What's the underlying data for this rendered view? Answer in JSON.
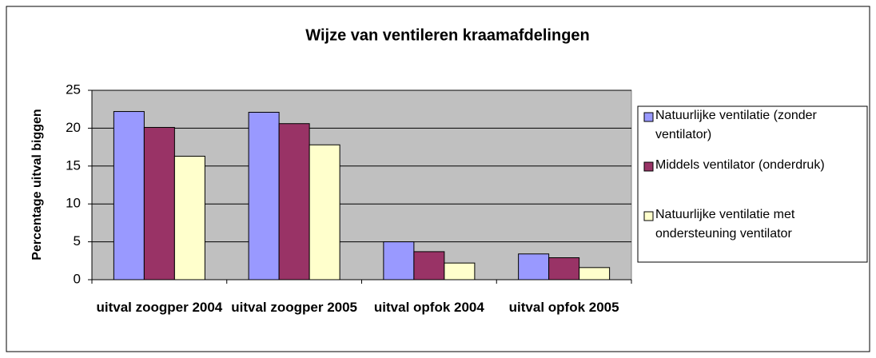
{
  "chart_data": {
    "type": "bar",
    "title": "Wijze van ventileren kraamafdelingen",
    "y_label": "Percentage uitval biggen",
    "categories": [
      "uitval zoogper 2004",
      "uitval zoogper 2005",
      "uitval opfok 2004",
      "uitval opfok 2005"
    ],
    "series": [
      {
        "name": "Natuurlijke ventilatie (zonder ventilator)",
        "color": "#9999FF",
        "values": [
          22.2,
          22.1,
          5.0,
          3.4
        ]
      },
      {
        "name": "Middels ventilator (onderdruk)",
        "color": "#993366",
        "values": [
          20.1,
          20.6,
          3.7,
          2.9
        ]
      },
      {
        "name": "Natuurlijke ventilatie met ondersteuning ventilator",
        "color": "#FFFFCC",
        "values": [
          16.3,
          17.8,
          2.2,
          1.6
        ]
      }
    ],
    "ylim": [
      0,
      25
    ],
    "yticks": [
      0,
      5,
      10,
      15,
      20,
      25
    ],
    "grid": true,
    "legend": "right"
  }
}
